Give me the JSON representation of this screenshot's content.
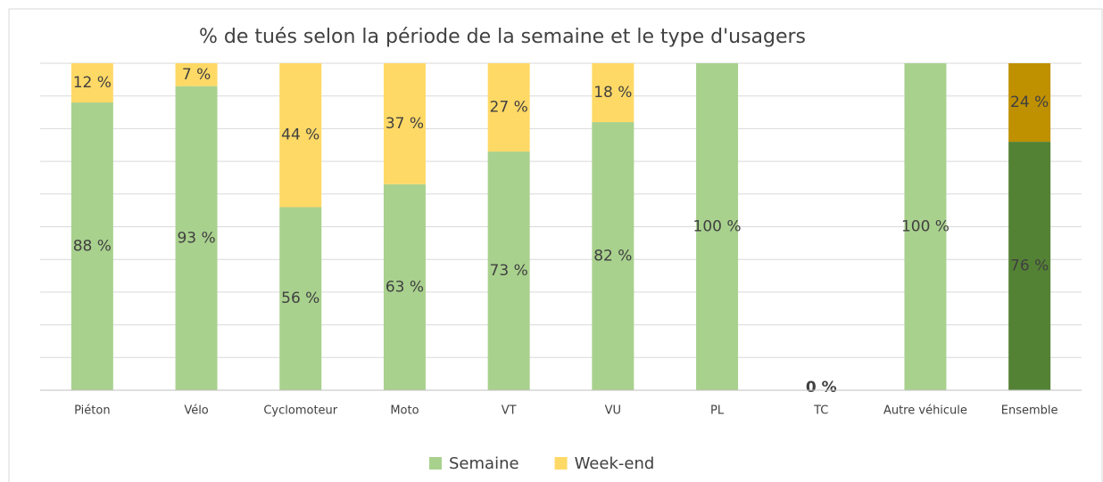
{
  "chart_data": {
    "type": "stacked_bar",
    "title": "% de tués selon la période de la semaine et le type d'usagers",
    "categories": [
      "Piéton",
      "Vélo",
      "Cyclomoteur",
      "Moto",
      "VT",
      "VU",
      "PL",
      "TC",
      "Autre véhicule",
      "Ensemble"
    ],
    "series": [
      {
        "name": "Semaine",
        "color": "#a9d18e",
        "colors": [
          "#a9d18e",
          "#a9d18e",
          "#a9d18e",
          "#a9d18e",
          "#a9d18e",
          "#a9d18e",
          "#a9d18e",
          "#a9d18e",
          "#a9d18e",
          "#548235"
        ],
        "values": [
          88,
          93,
          56,
          63,
          73,
          82,
          100,
          0,
          100,
          76
        ],
        "value_labels": [
          "88 %",
          "93 %",
          "56 %",
          "63 %",
          "73 %",
          "82 %",
          "100 %",
          "0 %",
          "100 %",
          "76 %"
        ]
      },
      {
        "name": "Week-end",
        "color": "#ffd966",
        "colors": [
          "#ffd966",
          "#ffd966",
          "#ffd966",
          "#ffd966",
          "#ffd966",
          "#ffd966",
          "#ffd966",
          "#ffd966",
          "#ffd966",
          "#bf9000"
        ],
        "values": [
          12,
          7,
          44,
          37,
          27,
          18,
          0,
          0,
          0,
          24
        ],
        "value_labels": [
          "12 %",
          "7 %",
          "44 %",
          "37 %",
          "27 %",
          "18 %",
          null,
          null,
          null,
          "24 %"
        ]
      }
    ],
    "ylim": [
      0,
      100
    ],
    "yticks": [
      0,
      10,
      20,
      30,
      40,
      50,
      60,
      70,
      80,
      90,
      100
    ],
    "grid": true,
    "legend": "bottom"
  }
}
